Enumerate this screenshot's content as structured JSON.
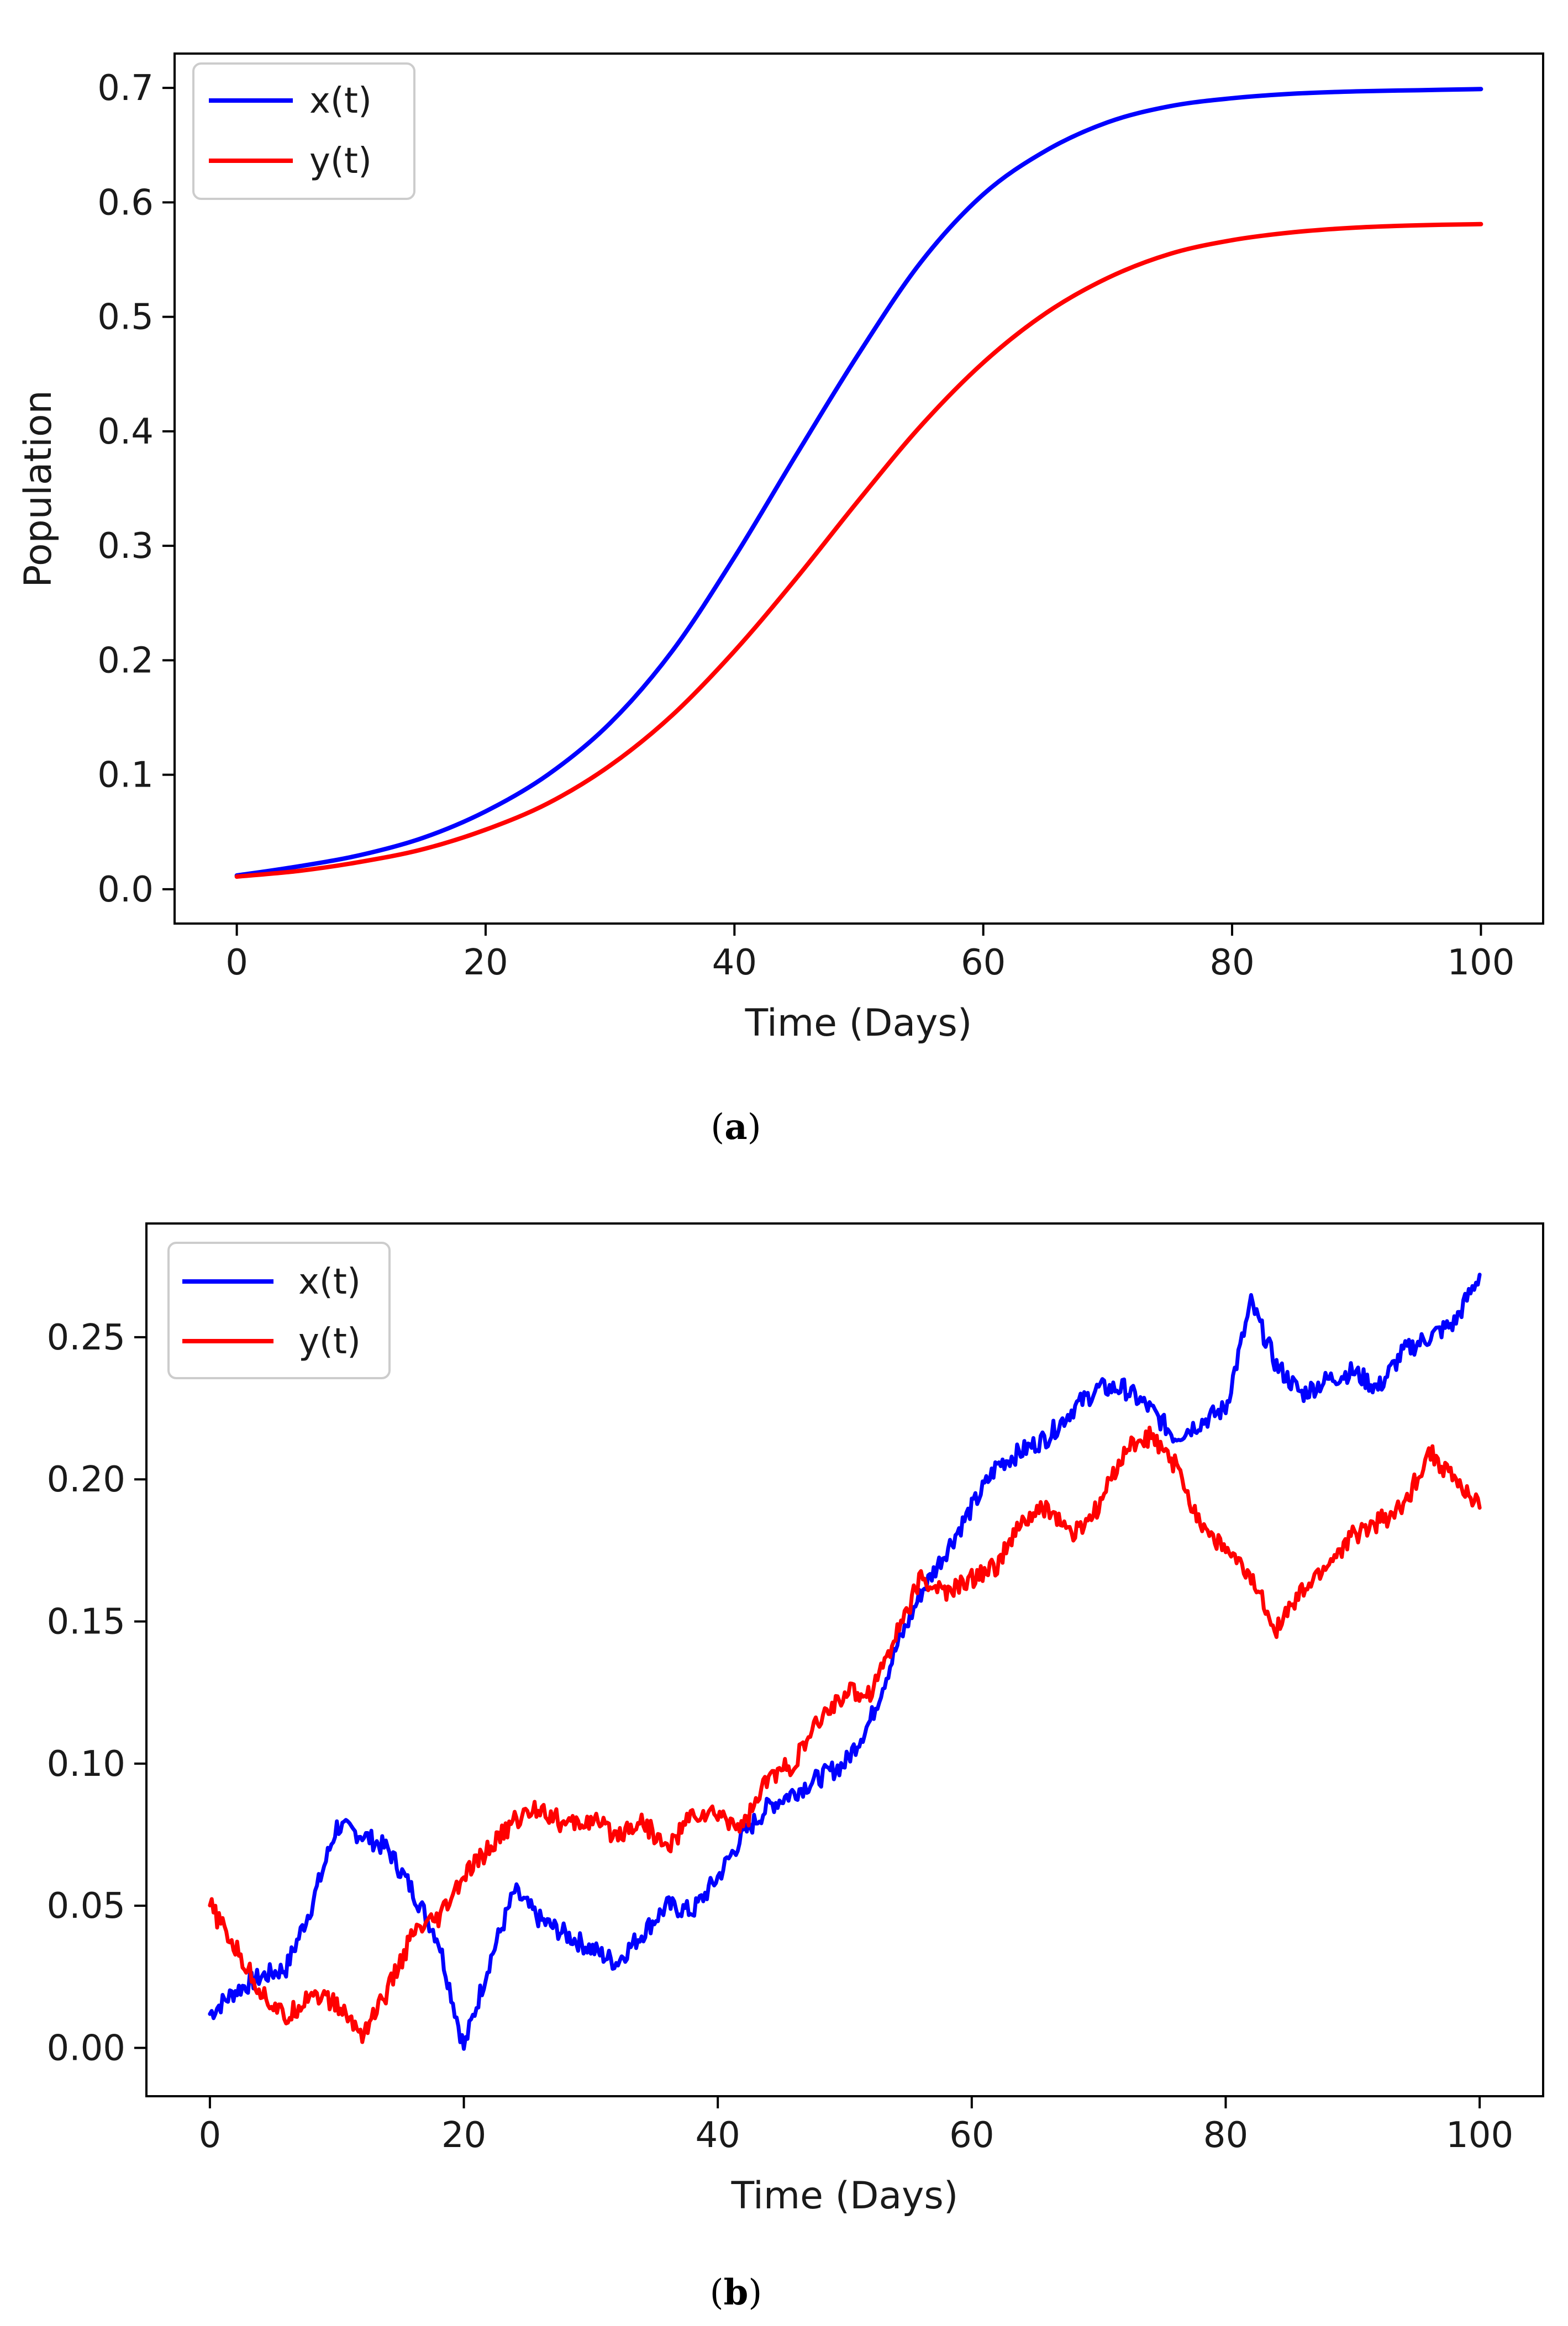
{
  "chart_data": [
    {
      "panel": "a",
      "caption": {
        "open": "(",
        "label": "a",
        "close": ")"
      },
      "type": "line",
      "xlabel": "Time (Days)",
      "ylabel": "Population",
      "xlim": [
        -5,
        105
      ],
      "ylim": [
        -0.03,
        0.73
      ],
      "xticks": [
        0,
        20,
        40,
        60,
        80,
        100
      ],
      "xtick_labels": [
        "0",
        "20",
        "40",
        "60",
        "80",
        "100"
      ],
      "yticks": [
        0.0,
        0.1,
        0.2,
        0.3,
        0.4,
        0.5,
        0.6,
        0.7
      ],
      "ytick_labels": [
        "0.0",
        "0.1",
        "0.2",
        "0.3",
        "0.4",
        "0.5",
        "0.6",
        "0.7"
      ],
      "legend_position": "top-left",
      "series": [
        {
          "name": "x(t)",
          "color": "#0000ff",
          "x": [
            0,
            5,
            10,
            15,
            20,
            25,
            30,
            35,
            40,
            45,
            50,
            55,
            60,
            65,
            70,
            75,
            80,
            85,
            90,
            95,
            100
          ],
          "y": [
            0.012,
            0.02,
            0.03,
            0.045,
            0.068,
            0.1,
            0.145,
            0.208,
            0.29,
            0.38,
            0.468,
            0.548,
            0.607,
            0.645,
            0.67,
            0.684,
            0.691,
            0.695,
            0.697,
            0.698,
            0.699
          ]
        },
        {
          "name": "y(t)",
          "color": "#ff0000",
          "x": [
            0,
            5,
            10,
            15,
            20,
            25,
            30,
            35,
            40,
            45,
            50,
            55,
            60,
            65,
            70,
            75,
            80,
            85,
            90,
            95,
            100
          ],
          "y": [
            0.011,
            0.016,
            0.024,
            0.035,
            0.052,
            0.075,
            0.108,
            0.152,
            0.208,
            0.272,
            0.34,
            0.405,
            0.46,
            0.503,
            0.534,
            0.555,
            0.567,
            0.574,
            0.578,
            0.58,
            0.581
          ]
        }
      ]
    },
    {
      "panel": "b",
      "caption": {
        "open": "(",
        "label": "b",
        "close": ")"
      },
      "type": "line",
      "xlabel": "Time (Days)",
      "ylabel": "",
      "xlim": [
        -5,
        105
      ],
      "ylim": [
        -0.017,
        0.29
      ],
      "xticks": [
        0,
        20,
        40,
        60,
        80,
        100
      ],
      "xtick_labels": [
        "0",
        "20",
        "40",
        "60",
        "80",
        "100"
      ],
      "yticks": [
        0.0,
        0.05,
        0.1,
        0.15,
        0.2,
        0.25
      ],
      "ytick_labels": [
        "0.00",
        "0.05",
        "0.10",
        "0.15",
        "0.20",
        "0.25"
      ],
      "legend_position": "top-left",
      "series": [
        {
          "name": "x(t)",
          "color": "#0000ff",
          "x": [
            0,
            2,
            4,
            6,
            8,
            10,
            12,
            14,
            16,
            18,
            20,
            22,
            24,
            26,
            28,
            30,
            32,
            34,
            36,
            38,
            40,
            42,
            44,
            46,
            48,
            50,
            52,
            54,
            56,
            58,
            60,
            62,
            64,
            66,
            68,
            70,
            72,
            74,
            76,
            78,
            80,
            82,
            84,
            86,
            88,
            90,
            92,
            94,
            96,
            98,
            100
          ],
          "y": [
            0.012,
            0.02,
            0.025,
            0.028,
            0.05,
            0.078,
            0.075,
            0.07,
            0.055,
            0.038,
            0.0,
            0.03,
            0.055,
            0.045,
            0.04,
            0.035,
            0.03,
            0.04,
            0.05,
            0.048,
            0.06,
            0.075,
            0.085,
            0.09,
            0.095,
            0.1,
            0.115,
            0.14,
            0.16,
            0.175,
            0.19,
            0.205,
            0.21,
            0.215,
            0.225,
            0.232,
            0.232,
            0.225,
            0.215,
            0.22,
            0.225,
            0.262,
            0.24,
            0.23,
            0.235,
            0.238,
            0.232,
            0.245,
            0.25,
            0.255,
            0.272
          ]
        },
        {
          "name": "y(t)",
          "color": "#ff0000",
          "x": [
            0,
            2,
            4,
            6,
            8,
            10,
            12,
            14,
            16,
            18,
            20,
            22,
            24,
            26,
            28,
            30,
            32,
            34,
            36,
            38,
            40,
            42,
            44,
            46,
            48,
            50,
            52,
            54,
            56,
            58,
            60,
            62,
            64,
            66,
            68,
            70,
            72,
            74,
            76,
            78,
            80,
            82,
            84,
            86,
            88,
            90,
            92,
            94,
            96,
            98,
            100
          ],
          "y": [
            0.05,
            0.035,
            0.02,
            0.01,
            0.02,
            0.015,
            0.005,
            0.02,
            0.04,
            0.045,
            0.06,
            0.07,
            0.08,
            0.085,
            0.078,
            0.08,
            0.075,
            0.08,
            0.07,
            0.082,
            0.082,
            0.078,
            0.095,
            0.1,
            0.115,
            0.125,
            0.125,
            0.145,
            0.165,
            0.16,
            0.165,
            0.17,
            0.185,
            0.19,
            0.18,
            0.19,
            0.21,
            0.215,
            0.205,
            0.185,
            0.175,
            0.165,
            0.148,
            0.16,
            0.17,
            0.18,
            0.185,
            0.19,
            0.21,
            0.2,
            0.19
          ]
        }
      ]
    }
  ]
}
